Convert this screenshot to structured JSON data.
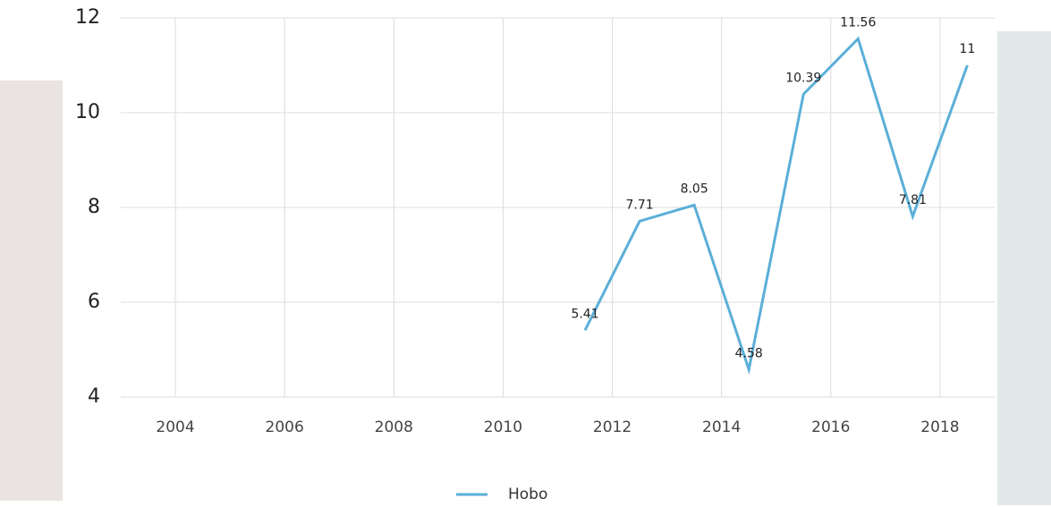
{
  "chart_data": {
    "type": "line",
    "x": [
      2011.5,
      2012.5,
      2013.5,
      2014.5,
      2015.5,
      2016.5,
      2017.5,
      2018.5
    ],
    "series": [
      {
        "name": "Hobo",
        "color": "#5aafd8",
        "values": [
          5.41,
          7.71,
          8.05,
          4.58,
          10.39,
          11.56,
          7.81,
          11
        ]
      }
    ],
    "xlim": [
      2003,
      2019
    ],
    "xticks": [
      2004,
      2006,
      2008,
      2010,
      2012,
      2014,
      2016,
      2018
    ],
    "ylim": [
      4,
      12
    ],
    "yticks": [
      4,
      6,
      8,
      10,
      12
    ],
    "grid": true
  }
}
